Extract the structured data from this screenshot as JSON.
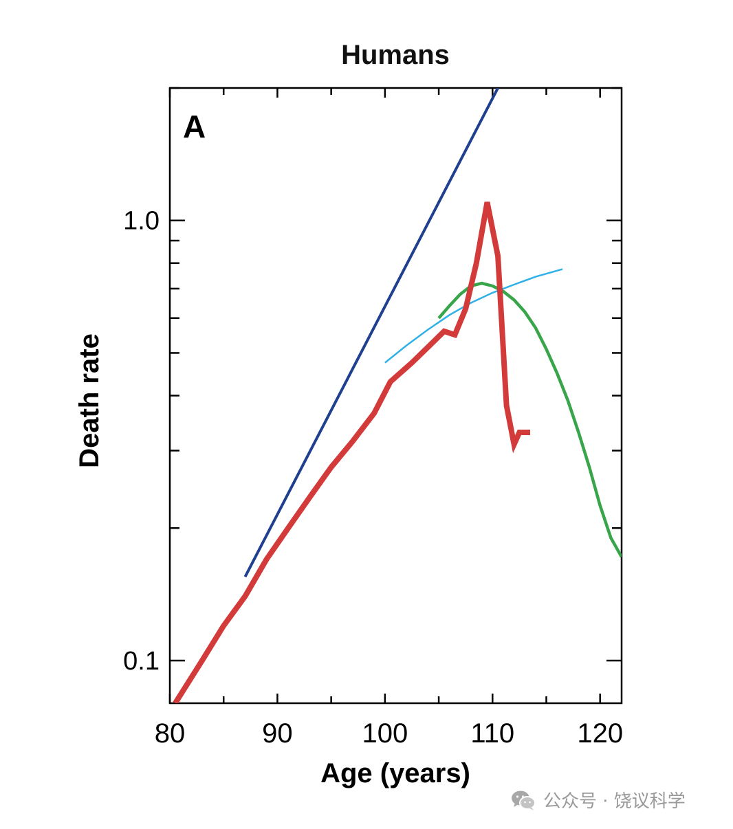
{
  "chart_data": {
    "type": "line",
    "title": "Humans",
    "panel_label": "A",
    "xlabel": "Age (years)",
    "ylabel": "Death rate",
    "xlim": [
      80,
      122
    ],
    "ylim": [
      0.08,
      2.0
    ],
    "yscale": "log",
    "x_ticks": [
      "80",
      "90",
      "100",
      "110",
      "120"
    ],
    "y_ticks": [
      "0.1",
      "1.0"
    ],
    "grid": false,
    "legend": null,
    "series": [
      {
        "color": "#1f3f8f",
        "kind": "exponential",
        "x": [
          87,
          110.5
        ],
        "y": [
          0.155,
          2.0
        ]
      },
      {
        "color": "#2fb1e8",
        "kind": "fit",
        "x": [
          100,
          102,
          104,
          106,
          108,
          110,
          112,
          114,
          116.5
        ],
        "y": [
          0.475,
          0.52,
          0.565,
          0.61,
          0.65,
          0.685,
          0.715,
          0.745,
          0.775
        ]
      },
      {
        "color": "#38a54b",
        "kind": "fit",
        "x": [
          105,
          106,
          107,
          108,
          109,
          110,
          111,
          112,
          113,
          114,
          115,
          116,
          117,
          118,
          119,
          120,
          121,
          122
        ],
        "y": [
          0.6,
          0.64,
          0.68,
          0.71,
          0.72,
          0.71,
          0.69,
          0.66,
          0.62,
          0.57,
          0.51,
          0.45,
          0.39,
          0.33,
          0.275,
          0.225,
          0.19,
          0.172
        ]
      },
      {
        "color": "#d33a3a",
        "kind": "observed",
        "x": [
          80.5,
          83,
          85,
          87,
          89,
          91,
          93,
          95,
          97,
          99,
          100.5,
          102.5,
          104.5,
          105.5,
          106.5,
          107.5,
          108.5,
          109.5,
          110.5,
          111.3,
          112,
          112.5,
          113.5
        ],
        "y": [
          0.08,
          0.1,
          0.12,
          0.14,
          0.17,
          0.2,
          0.235,
          0.275,
          0.315,
          0.365,
          0.43,
          0.475,
          0.53,
          0.56,
          0.55,
          0.63,
          0.8,
          1.1,
          0.83,
          0.38,
          0.31,
          0.33,
          0.33
        ]
      }
    ]
  },
  "watermark": {
    "icon": "wechat-icon",
    "text": "公众号 · 饶议科学"
  }
}
